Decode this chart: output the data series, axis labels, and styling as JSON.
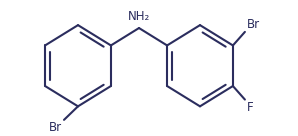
{
  "bg_color": "#ffffff",
  "line_color": "#2b2d5e",
  "line_width": 1.5,
  "font_size_label": 8.5,
  "figsize": [
    2.98,
    1.36
  ],
  "dpi": 100,
  "labels": {
    "NH2": "NH₂",
    "Br_top": "Br",
    "Br_bottom": "Br",
    "F": "F"
  }
}
